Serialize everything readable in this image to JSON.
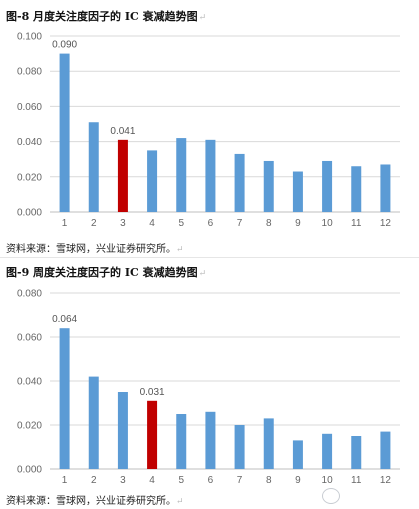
{
  "figures": [
    {
      "title": "图-8 月度关注度因子的 IC 衰减趋势图",
      "title_mark": "↵",
      "source": "资料来源：雪球网，兴业证券研究所。",
      "source_mark": "↵"
    },
    {
      "title": "图-9 周度关注度因子的 IC 衰减趋势图",
      "title_mark": "↵",
      "source": "资料来源：雪球网，兴业证券研究所。",
      "source_mark": "↵"
    }
  ],
  "colors": {
    "bar": "#5B9BD5",
    "highlight": "#C00000",
    "grid": "#D9D9D9",
    "axis": "#BFBFBF"
  },
  "chart_data": [
    {
      "type": "bar",
      "categories": [
        "1",
        "2",
        "3",
        "4",
        "5",
        "6",
        "7",
        "8",
        "9",
        "10",
        "11",
        "12"
      ],
      "values": [
        0.09,
        0.051,
        0.041,
        0.035,
        0.042,
        0.041,
        0.033,
        0.029,
        0.023,
        0.029,
        0.026,
        0.027
      ],
      "highlight_index": 2,
      "data_labels": [
        {
          "index": 0,
          "text": "0.090"
        },
        {
          "index": 2,
          "text": "0.041"
        }
      ],
      "ylim": [
        0,
        0.1
      ],
      "yticks": [
        "0.000",
        "0.020",
        "0.040",
        "0.060",
        "0.080",
        "0.100"
      ],
      "grid": true
    },
    {
      "type": "bar",
      "categories": [
        "1",
        "2",
        "3",
        "4",
        "5",
        "6",
        "7",
        "8",
        "9",
        "10",
        "11",
        "12"
      ],
      "values": [
        0.064,
        0.042,
        0.035,
        0.031,
        0.025,
        0.026,
        0.02,
        0.023,
        0.013,
        0.016,
        0.015,
        0.017
      ],
      "highlight_index": 3,
      "data_labels": [
        {
          "index": 0,
          "text": "0.064"
        },
        {
          "index": 3,
          "text": "0.031"
        }
      ],
      "ylim": [
        0,
        0.08
      ],
      "yticks": [
        "0.000",
        "0.020",
        "0.040",
        "0.060",
        "0.080"
      ],
      "grid": true
    }
  ]
}
